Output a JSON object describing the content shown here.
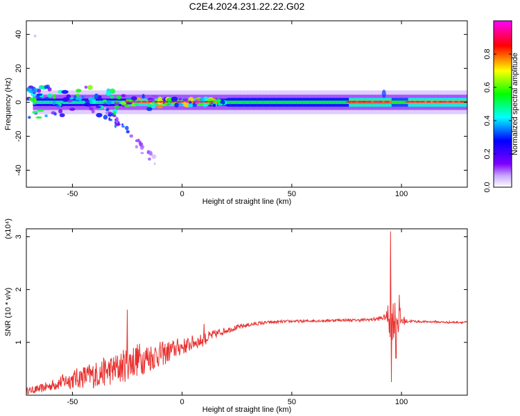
{
  "title": "C2E4.2024.231.22.22.G02",
  "chart_data": [
    {
      "type": "heatmap",
      "xlabel": "Height of straight line (km)",
      "ylabel": "Frequency (Hz)",
      "xlim": [
        -71,
        130
      ],
      "ylim": [
        -50,
        48
      ],
      "xticks": [
        -50,
        0,
        50,
        100
      ],
      "yticks": [
        -40,
        -20,
        0,
        20,
        40
      ],
      "colorbar": {
        "label": "Normalized spectral amplitude",
        "range": [
          0,
          1
        ],
        "ticks": [
          "0.0",
          "0.2",
          "0.4",
          "0.6",
          "0.8"
        ],
        "colors": [
          "#ffffff",
          "#7f00ff",
          "#0000ff",
          "#00ffff",
          "#00ff00",
          "#ffff00",
          "#ff0000",
          "#ff00ff"
        ]
      },
      "features": {
        "main_band_center_hz": 0,
        "band_start_km": -68,
        "band_end_km": 130,
        "upper_branch": {
          "x": [
            -70,
            -60
          ],
          "y": 8
        },
        "descending_branch": {
          "x": [
            -35,
            -12
          ],
          "y": [
            -5,
            -35
          ]
        },
        "peak_regions_km": [
          [
            -25,
            15
          ],
          [
            75,
            95
          ],
          [
            102,
            130
          ]
        ]
      }
    },
    {
      "type": "line",
      "xlabel": "Height of straight line (km)",
      "ylabel": "SNR (10 * v/v)",
      "yscale_label": "(x10⁴)",
      "xlim": [
        -71,
        130
      ],
      "ylim": [
        0,
        3.15
      ],
      "xticks": [
        -50,
        0,
        50,
        100
      ],
      "yticks": [
        1,
        2,
        3
      ],
      "series": [
        {
          "color": "#e8312f",
          "x": [
            -71,
            -65,
            -60,
            -55,
            -50,
            -45,
            -40,
            -35,
            -30,
            -27,
            -25,
            -22,
            -20,
            -17,
            -15,
            -12,
            -10,
            -7,
            -5,
            -2,
            0,
            3,
            5,
            8,
            10,
            12,
            15,
            18,
            20,
            25,
            30,
            35,
            40,
            45,
            50,
            55,
            60,
            65,
            70,
            75,
            80,
            85,
            88,
            91,
            93,
            94,
            95,
            96,
            97,
            98,
            99,
            100,
            102,
            105,
            110,
            115,
            120,
            125,
            130
          ],
          "y": [
            0.08,
            0.12,
            0.18,
            0.25,
            0.3,
            0.35,
            0.38,
            0.45,
            0.5,
            0.55,
            0.6,
            0.65,
            0.68,
            0.7,
            0.72,
            0.75,
            0.78,
            0.8,
            0.85,
            0.9,
            0.92,
            0.95,
            1.0,
            1.02,
            1.05,
            1.1,
            1.15,
            1.2,
            1.23,
            1.28,
            1.33,
            1.36,
            1.38,
            1.39,
            1.4,
            1.4,
            1.41,
            1.41,
            1.42,
            1.42,
            1.42,
            1.43,
            1.44,
            1.46,
            1.48,
            1.5,
            1.5,
            1.45,
            1.45,
            1.45,
            1.42,
            1.42,
            1.4,
            1.4,
            1.39,
            1.39,
            1.38,
            1.38,
            1.38
          ],
          "noise": [
            0.06,
            0.08,
            0.1,
            0.14,
            0.18,
            0.22,
            0.25,
            0.28,
            0.3,
            0.32,
            0.33,
            0.33,
            0.32,
            0.3,
            0.28,
            0.26,
            0.24,
            0.22,
            0.2,
            0.18,
            0.16,
            0.15,
            0.14,
            0.13,
            0.12,
            0.11,
            0.09,
            0.07,
            0.06,
            0.05,
            0.04,
            0.035,
            0.03,
            0.03,
            0.025,
            0.025,
            0.025,
            0.025,
            0.025,
            0.025,
            0.025,
            0.03,
            0.035,
            0.05,
            0.06,
            0.3,
            0.5,
            0.4,
            0.4,
            0.35,
            0.3,
            0.15,
            0.04,
            0.025,
            0.02,
            0.02,
            0.02,
            0.02,
            0.02
          ],
          "spikes": [
            {
              "x": -25,
              "y": 1.62
            },
            {
              "x": 10,
              "y": 1.35
            },
            {
              "x": 95,
              "y": 3.1
            },
            {
              "x": 95.4,
              "y": 0.25
            },
            {
              "x": 99,
              "y": 1.9
            },
            {
              "x": 97.5,
              "y": 0.7
            }
          ]
        }
      ]
    }
  ]
}
